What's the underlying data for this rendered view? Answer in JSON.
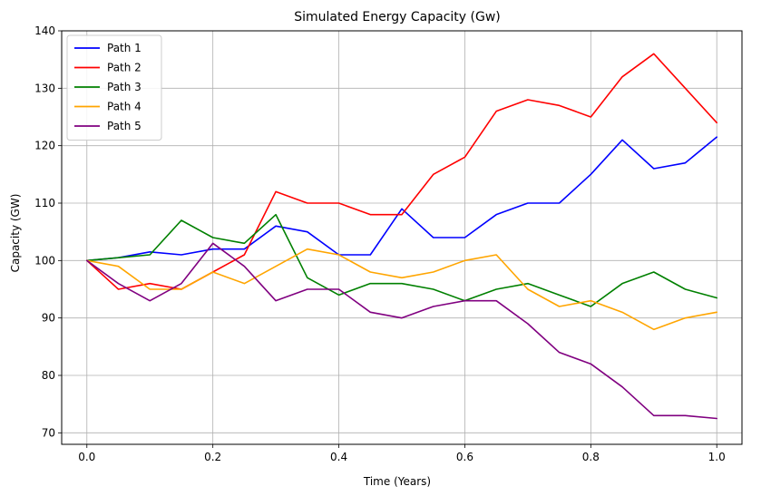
{
  "chart_data": {
    "type": "line",
    "title": "Simulated Energy Capacity (Gw)",
    "xlabel": "Time (Years)",
    "ylabel": "Capacity (GW)",
    "xlim": [
      -0.04,
      1.04
    ],
    "ylim": [
      68,
      140
    ],
    "xticks": [
      0,
      0.2,
      0.4,
      0.6,
      0.8,
      1.0
    ],
    "xtick_labels": [
      "0.0",
      "0.2",
      "0.4",
      "0.6",
      "0.8",
      "1.0"
    ],
    "yticks": [
      70,
      80,
      90,
      100,
      110,
      120,
      130,
      140
    ],
    "ytick_labels": [
      "70",
      "80",
      "90",
      "100",
      "110",
      "120",
      "130",
      "140"
    ],
    "grid": true,
    "legend_position": "top-left",
    "x": [
      0.0,
      0.05,
      0.1,
      0.15,
      0.2,
      0.25,
      0.3,
      0.35,
      0.4,
      0.45,
      0.5,
      0.55,
      0.6,
      0.65,
      0.7,
      0.75,
      0.8,
      0.85,
      0.9,
      0.95,
      1.0
    ],
    "series": [
      {
        "name": "Path 1",
        "color": "#0000ff",
        "values": [
          100,
          100.5,
          101.5,
          101,
          102,
          102,
          106,
          105,
          101,
          101,
          109,
          104,
          104,
          108,
          110,
          110,
          115,
          121,
          116,
          117,
          121.5
        ]
      },
      {
        "name": "Path 2",
        "color": "#ff0000",
        "values": [
          100,
          95,
          96,
          95,
          98,
          101,
          112,
          110,
          110,
          108,
          108,
          115,
          118,
          126,
          128,
          127,
          125,
          132,
          136,
          130,
          124
        ]
      },
      {
        "name": "Path 3",
        "color": "#008000",
        "values": [
          100,
          100.5,
          101,
          107,
          104,
          103,
          108,
          97,
          94,
          96,
          96,
          95,
          93,
          95,
          96,
          94,
          92,
          96,
          98,
          95,
          93.5
        ]
      },
      {
        "name": "Path 4",
        "color": "#ffa500",
        "values": [
          100,
          99,
          95,
          95,
          98,
          96,
          99,
          102,
          101,
          98,
          97,
          98,
          100,
          101,
          95,
          92,
          93,
          91,
          88,
          90,
          91
        ]
      },
      {
        "name": "Path 5",
        "color": "#800080",
        "values": [
          100,
          96,
          93,
          96,
          103,
          99,
          93,
          95,
          95,
          91,
          90,
          92,
          93,
          93,
          89,
          84,
          82,
          78,
          73,
          73,
          72.5
        ]
      }
    ]
  }
}
